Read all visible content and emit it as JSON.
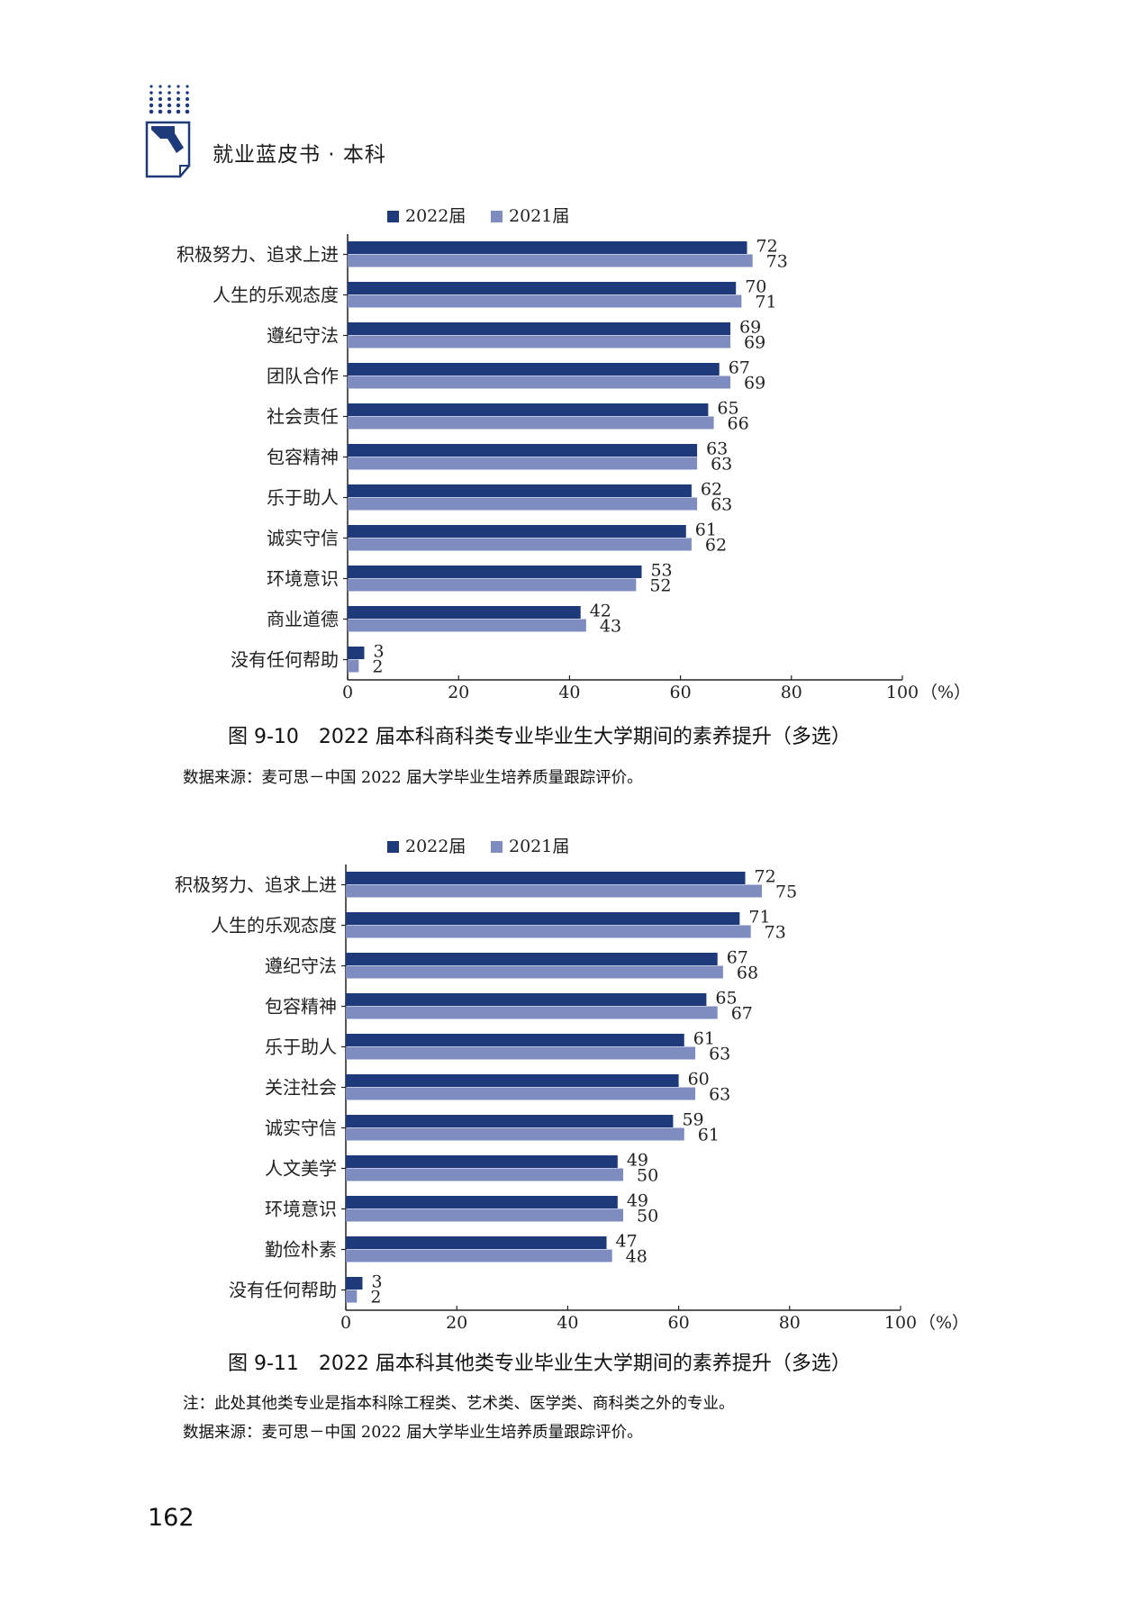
{
  "header": {
    "book_title": "就业蓝皮书 · 本科",
    "logo_icon": "book-arrow-logo-icon"
  },
  "colors": {
    "series_2022": "#1f3a7a",
    "series_2021": "#7f8cbf"
  },
  "figures": [
    {
      "caption": "图 9-10　2022 届本科商科类专业毕业生大学期间的素养提升（多选）",
      "notes": [
        "数据来源：麦可思－中国 2022 届大学毕业生培养质量跟踪评价。"
      ]
    },
    {
      "caption": "图 9-11　2022 届本科其他类专业毕业生大学期间的素养提升（多选）",
      "notes": [
        "注：此处其他类专业是指本科除工程类、艺术类、医学类、商科类之外的专业。",
        "数据来源：麦可思－中国 2022 届大学毕业生培养质量跟踪评价。"
      ]
    }
  ],
  "chart_data": [
    {
      "type": "bar",
      "orientation": "horizontal",
      "categories": [
        "积极努力、追求上进",
        "人生的乐观态度",
        "遵纪守法",
        "团队合作",
        "社会责任",
        "包容精神",
        "乐于助人",
        "诚实守信",
        "环境意识",
        "商业道德",
        "没有任何帮助"
      ],
      "series": [
        {
          "name": "2022届",
          "values": [
            72,
            70,
            69,
            67,
            65,
            63,
            62,
            61,
            53,
            42,
            3
          ]
        },
        {
          "name": "2021届",
          "values": [
            73,
            71,
            69,
            69,
            66,
            63,
            63,
            62,
            52,
            43,
            2
          ]
        }
      ],
      "xlim": [
        0,
        100
      ],
      "xticks": [
        0,
        20,
        40,
        60,
        80,
        100
      ],
      "xunit": "（%）",
      "legend_position": "top",
      "grid": false
    },
    {
      "type": "bar",
      "orientation": "horizontal",
      "categories": [
        "积极努力、追求上进",
        "人生的乐观态度",
        "遵纪守法",
        "包容精神",
        "乐于助人",
        "关注社会",
        "诚实守信",
        "人文美学",
        "环境意识",
        "勤俭朴素",
        "没有任何帮助"
      ],
      "series": [
        {
          "name": "2022届",
          "values": [
            72,
            71,
            67,
            65,
            61,
            60,
            59,
            49,
            49,
            47,
            3
          ]
        },
        {
          "name": "2021届",
          "values": [
            75,
            73,
            68,
            67,
            63,
            63,
            61,
            50,
            50,
            48,
            2
          ]
        }
      ],
      "xlim": [
        0,
        100
      ],
      "xticks": [
        0,
        20,
        40,
        60,
        80,
        100
      ],
      "xunit": "（%）",
      "legend_position": "top",
      "grid": false
    }
  ],
  "page": {
    "number": "162"
  }
}
